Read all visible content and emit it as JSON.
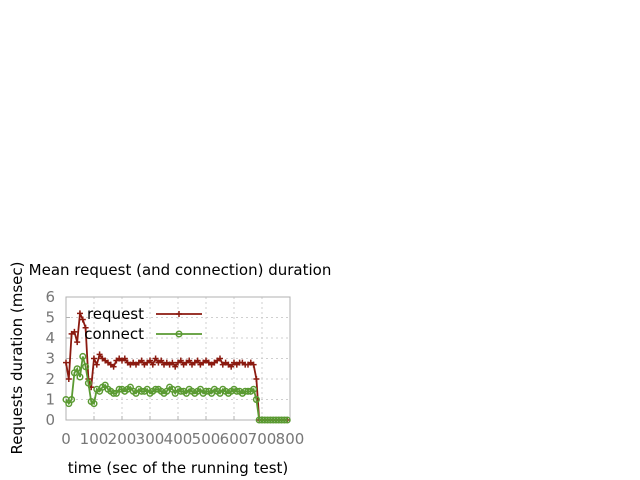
{
  "chart_data": {
    "type": "line",
    "title": "Mean request (and connection) duration",
    "xlabel": "time (sec of the running test)",
    "ylabel": "Requests duration (msec)",
    "xlim": [
      0,
      800
    ],
    "ylim": [
      0,
      6
    ],
    "xticks": [
      0,
      100,
      200,
      300,
      400,
      500,
      600,
      700,
      800
    ],
    "yticks": [
      0,
      1,
      2,
      3,
      4,
      5,
      6
    ],
    "grid": true,
    "legend_position": "top-left",
    "series": [
      {
        "name": "request",
        "color": "#8b1a10",
        "marker": "plus",
        "x": [
          0,
          10,
          20,
          30,
          40,
          50,
          60,
          70,
          80,
          90,
          100,
          110,
          120,
          130,
          140,
          150,
          160,
          170,
          180,
          190,
          200,
          210,
          220,
          230,
          240,
          250,
          260,
          270,
          280,
          290,
          300,
          310,
          320,
          330,
          340,
          350,
          360,
          370,
          380,
          390,
          400,
          410,
          420,
          430,
          440,
          450,
          460,
          470,
          480,
          490,
          500,
          510,
          520,
          530,
          540,
          550,
          560,
          570,
          580,
          590,
          600,
          610,
          620,
          630,
          640,
          650,
          660,
          670,
          680,
          690,
          700,
          710,
          720,
          730,
          740,
          750,
          760,
          770,
          780,
          790
        ],
        "values": [
          2.8,
          2.0,
          4.2,
          4.3,
          3.8,
          5.2,
          4.9,
          4.5,
          2.0,
          1.6,
          3.0,
          2.7,
          3.2,
          3.0,
          2.9,
          2.8,
          2.7,
          2.6,
          2.9,
          3.0,
          2.9,
          3.0,
          2.8,
          2.7,
          2.8,
          2.7,
          2.8,
          2.9,
          2.7,
          2.8,
          2.9,
          2.7,
          3.0,
          2.8,
          2.9,
          2.7,
          2.8,
          2.7,
          2.8,
          2.6,
          2.8,
          2.9,
          2.7,
          2.8,
          2.9,
          2.7,
          2.8,
          2.9,
          2.7,
          2.8,
          2.9,
          2.8,
          2.7,
          2.8,
          2.9,
          3.0,
          2.7,
          2.8,
          2.7,
          2.6,
          2.8,
          2.7,
          2.8,
          2.8,
          2.7,
          2.7,
          2.8,
          2.7,
          2.0,
          0.0,
          0.0,
          0.0,
          0.0,
          0.0,
          0.0,
          0.0,
          0.0,
          0.0,
          0.0,
          0.0
        ]
      },
      {
        "name": "connect",
        "color": "#5a9a32",
        "marker": "circle",
        "x": [
          0,
          10,
          20,
          30,
          40,
          50,
          60,
          70,
          80,
          90,
          100,
          110,
          120,
          130,
          140,
          150,
          160,
          170,
          180,
          190,
          200,
          210,
          220,
          230,
          240,
          250,
          260,
          270,
          280,
          290,
          300,
          310,
          320,
          330,
          340,
          350,
          360,
          370,
          380,
          390,
          400,
          410,
          420,
          430,
          440,
          450,
          460,
          470,
          480,
          490,
          500,
          510,
          520,
          530,
          540,
          550,
          560,
          570,
          580,
          590,
          600,
          610,
          620,
          630,
          640,
          650,
          660,
          670,
          680,
          690,
          700,
          710,
          720,
          730,
          740,
          750,
          760,
          770,
          780,
          790
        ],
        "values": [
          1.0,
          0.8,
          1.0,
          2.3,
          2.5,
          2.1,
          3.1,
          2.6,
          1.8,
          0.9,
          0.8,
          1.5,
          1.4,
          1.6,
          1.7,
          1.5,
          1.4,
          1.3,
          1.3,
          1.5,
          1.5,
          1.4,
          1.5,
          1.6,
          1.4,
          1.3,
          1.5,
          1.4,
          1.4,
          1.5,
          1.3,
          1.4,
          1.5,
          1.5,
          1.4,
          1.3,
          1.4,
          1.6,
          1.5,
          1.3,
          1.5,
          1.4,
          1.4,
          1.3,
          1.5,
          1.4,
          1.3,
          1.4,
          1.5,
          1.3,
          1.4,
          1.4,
          1.3,
          1.5,
          1.4,
          1.3,
          1.5,
          1.4,
          1.3,
          1.4,
          1.5,
          1.4,
          1.4,
          1.3,
          1.4,
          1.4,
          1.4,
          1.5,
          1.0,
          0.0,
          0.0,
          0.0,
          0.0,
          0.0,
          0.0,
          0.0,
          0.0,
          0.0,
          0.0,
          0.0
        ]
      }
    ]
  }
}
